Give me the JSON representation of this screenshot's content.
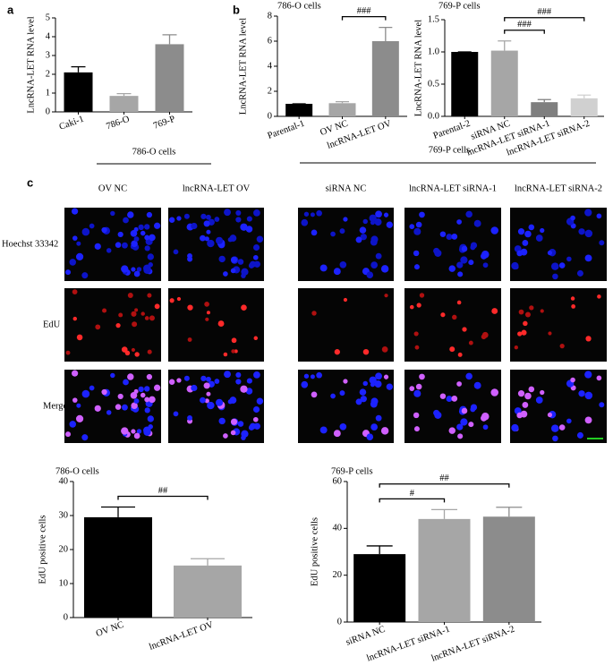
{
  "panel_labels": [
    "a",
    "b",
    "c"
  ],
  "chart_data": [
    {
      "type": "bar",
      "ylabel": "LncRNA-LET RNA level",
      "categories": [
        "Caki-1",
        "786-O",
        "769-P"
      ],
      "values": [
        2.1,
        0.85,
        3.6
      ],
      "errors": [
        0.3,
        0.12,
        0.5
      ],
      "colors": [
        "#000000",
        "#a6a6a6",
        "#8c8c8c"
      ],
      "ylim": [
        0,
        5
      ],
      "yticks": [
        0,
        1,
        2,
        3,
        4,
        5
      ],
      "annotations": []
    },
    {
      "type": "bar",
      "title": "786-O cells",
      "ylabel": "LncRNA-LET RNA level",
      "categories": [
        "Parental-1",
        "OV NC",
        "lncRNA-LET OV"
      ],
      "values": [
        1.0,
        1.05,
        6.0
      ],
      "errors": [
        0,
        0.12,
        1.1
      ],
      "colors": [
        "#000000",
        "#a6a6a6",
        "#8c8c8c"
      ],
      "ylim": [
        0,
        8
      ],
      "yticks": [
        0,
        2,
        4,
        6,
        8
      ],
      "annotations": [
        {
          "text": "###",
          "from": 1,
          "to": 2
        }
      ]
    },
    {
      "type": "bar",
      "title": "769-P cells",
      "ylabel": "LncRNA-LET RNA level",
      "categories": [
        "Parental-2",
        "siRNA NC",
        "lncRNA-LET siRNA-1",
        "lncRNA-LET siRNA-2"
      ],
      "values": [
        1.0,
        1.02,
        0.22,
        0.28
      ],
      "errors": [
        0,
        0.15,
        0.04,
        0.05
      ],
      "colors": [
        "#000000",
        "#a6a6a6",
        "#7f7f7f",
        "#d0d0d0"
      ],
      "ylim": [
        0,
        1.5
      ],
      "yticks": [
        {
          "value": 0,
          "label": "0.0"
        },
        {
          "value": 0.5,
          "label": "0.5"
        },
        {
          "value": 1,
          "label": "1.0"
        },
        {
          "value": 1.5,
          "label": "1.5"
        }
      ],
      "annotations": [
        {
          "text": "###",
          "from": 1,
          "to": 2
        },
        {
          "text": "###",
          "from": 1,
          "to": 3
        }
      ]
    },
    {
      "type": "bar",
      "title": "786-O cells",
      "ylabel": "EdU positive cells",
      "categories": [
        "OV NC",
        "lncRNA-LET OV"
      ],
      "values": [
        29.5,
        15.3
      ],
      "errors": [
        3,
        2
      ],
      "colors": [
        "#000000",
        "#a6a6a6"
      ],
      "ylim": [
        0,
        40
      ],
      "yticks": [
        0,
        10,
        20,
        30,
        40
      ],
      "annotations": [
        {
          "text": "##",
          "from": 0,
          "to": 1
        }
      ]
    },
    {
      "type": "bar",
      "title": "769-P cells",
      "ylabel": "EdU positive cells",
      "categories": [
        "siRNA NC",
        "lncRNA-LET siRNA-1",
        "lncRNA-LET siRNA-2"
      ],
      "values": [
        29,
        44,
        45
      ],
      "errors": [
        3.5,
        4,
        4
      ],
      "colors": [
        "#000000",
        "#a6a6a6",
        "#8c8c8c"
      ],
      "ylim": [
        0,
        60
      ],
      "yticks": [
        0,
        20,
        40,
        60
      ],
      "annotations": [
        {
          "text": "#",
          "from": 0,
          "to": 1
        },
        {
          "text": "##",
          "from": 0,
          "to": 2
        }
      ]
    }
  ],
  "panel_c": {
    "groups": [
      "786-O cells",
      "769-P cells"
    ],
    "columns": [
      "OV NC",
      "lncRNA-LET OV",
      "siRNA NC",
      "lncRNA-LET siRNA-1",
      "lncRNA-LET siRNA-2"
    ],
    "rows": [
      "Hoechst 33342",
      "EdU",
      "Merge"
    ]
  }
}
